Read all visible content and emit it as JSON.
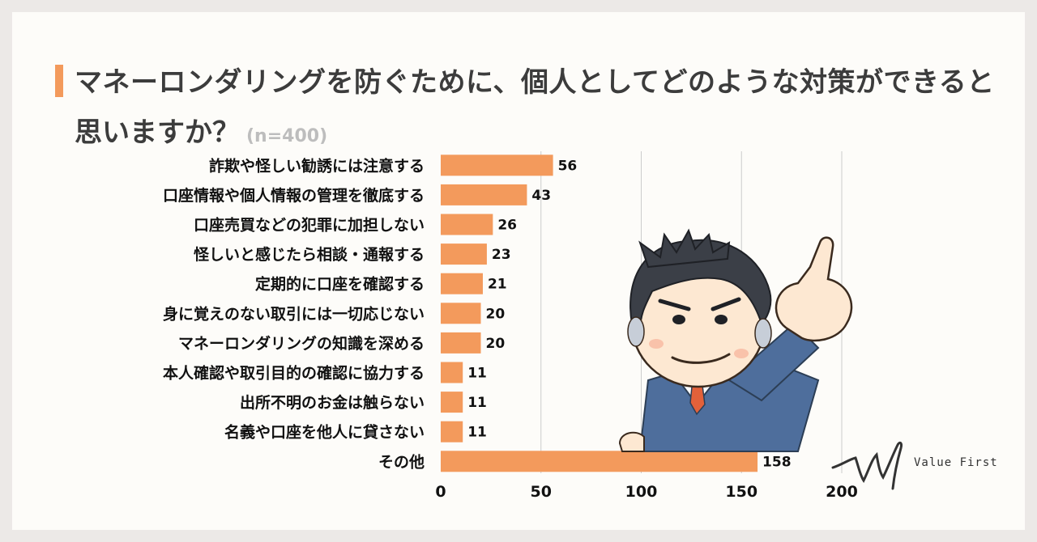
{
  "title": {
    "line1": "マネーロンダリングを防ぐために、個人としてどのような対策ができると",
    "line2": "思いますか？",
    "sample": "(n=400)"
  },
  "brand": {
    "name": "Value First"
  },
  "colors": {
    "bar": "#f39a5c",
    "accent": "#f39a5c",
    "grid": "#cccccc"
  },
  "chart_data": {
    "type": "bar",
    "orientation": "horizontal",
    "categories": [
      "詐欺や怪しい勧誘には注意する",
      "口座情報や個人情報の管理を徹底する",
      "口座売買などの犯罪に加担しない",
      "怪しいと感じたら相談・通報する",
      "定期的に口座を確認する",
      "身に覚えのない取引には一切応じない",
      "マネーロンダリングの知識を深める",
      "本人確認や取引目的の確認に協力する",
      "出所不明のお金は触らない",
      "名義や口座を他人に貸さない",
      "その他"
    ],
    "values": [
      56,
      43,
      26,
      23,
      21,
      20,
      20,
      11,
      11,
      11,
      158
    ],
    "xlim": [
      0,
      200
    ],
    "xticks": [
      "0",
      "50",
      "100",
      "150",
      "200"
    ],
    "grid": true
  }
}
